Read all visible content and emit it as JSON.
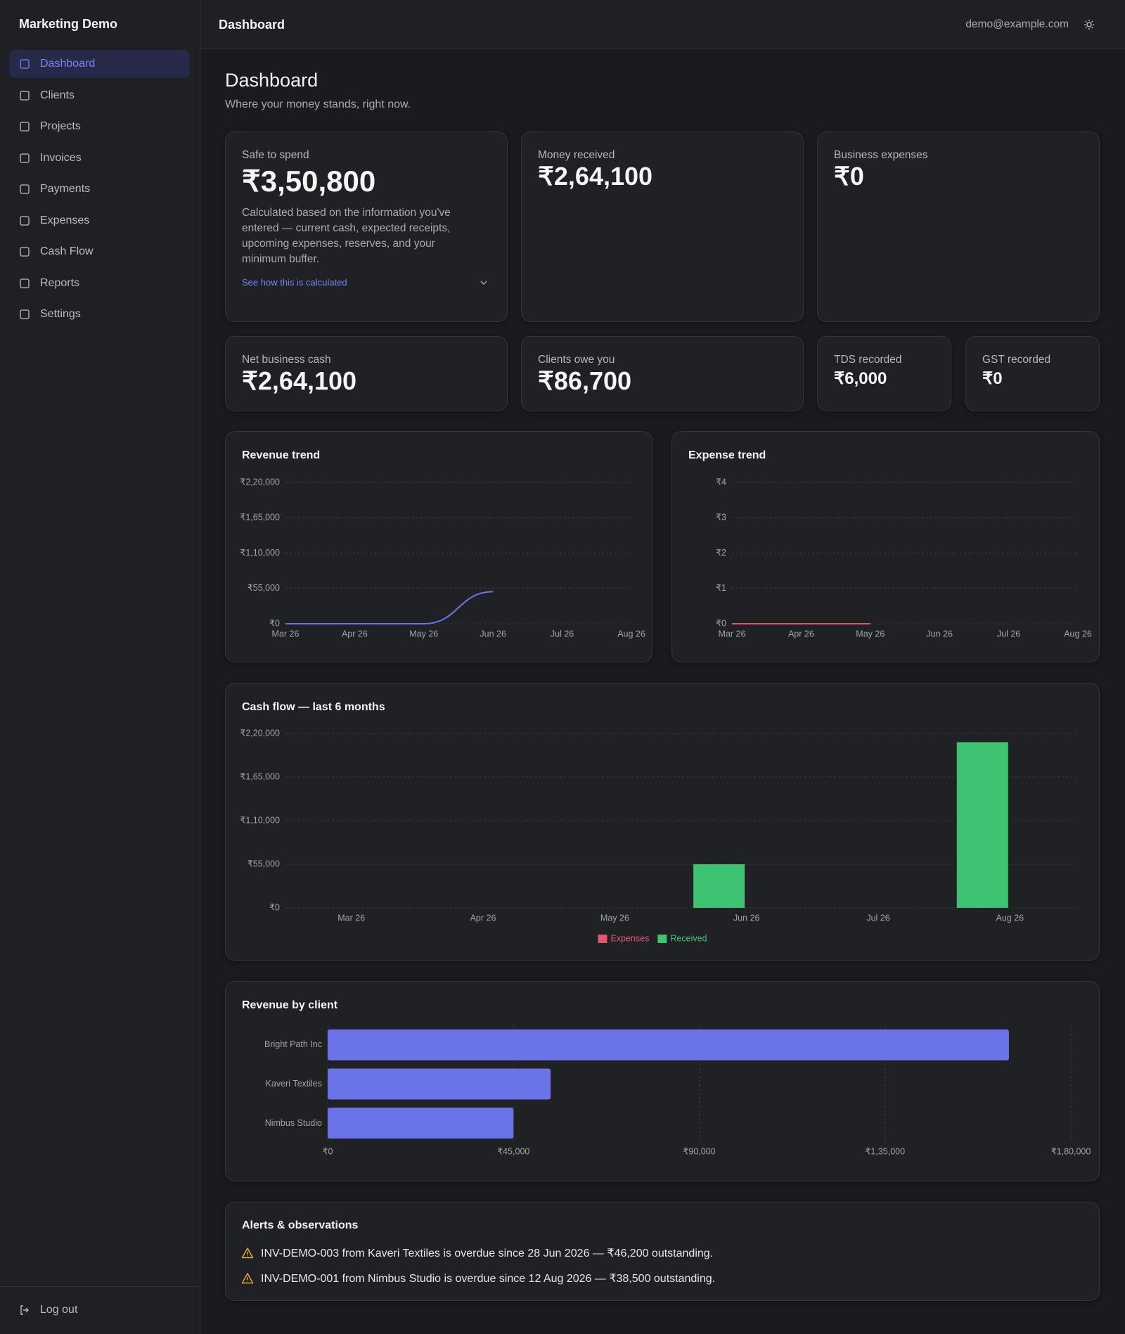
{
  "app": {
    "name": "Marketing Demo"
  },
  "nav": {
    "items": [
      "Dashboard",
      "Clients",
      "Projects",
      "Invoices",
      "Payments",
      "Expenses",
      "Cash Flow",
      "Reports",
      "Settings"
    ],
    "active": 0
  },
  "logout": "Log out",
  "header": {
    "title": "Dashboard",
    "user": "demo@example.com"
  },
  "page": {
    "title": "Dashboard",
    "subtitle": "Where your money stands, right now."
  },
  "cards": [
    {
      "label": "Safe to spend",
      "value": "₹3,50,800",
      "description": "Calculated based on the information you've entered — current cash, expected receipts, upcoming expenses, reserves, and your minimum buffer.",
      "link": "See how this is calculated"
    },
    {
      "label": "Money received",
      "value": "₹2,64,100"
    },
    {
      "label": "Business expenses",
      "value": "₹0"
    },
    {
      "label": "Net business cash",
      "value": "₹2,64,100"
    },
    {
      "label": "Clients owe you",
      "value": "₹86,700"
    },
    {
      "label": "TDS recorded",
      "value": "₹6,000"
    },
    {
      "label": "GST recorded",
      "value": "₹0"
    }
  ],
  "chart_data": [
    {
      "type": "line",
      "title": "Revenue trend",
      "categories": [
        "Mar 26",
        "Apr 26",
        "May 26",
        "Jun 26",
        "Jul 26",
        "Aug 26"
      ],
      "values": [
        0,
        0,
        0,
        50000,
        null,
        null
      ],
      "color": "#6b73e8",
      "ylim": [
        0,
        220000
      ],
      "yticks": [
        {
          "value": 0,
          "label": "₹0"
        },
        {
          "value": 55000,
          "label": "₹55,000"
        },
        {
          "value": 110000,
          "label": "₹1,10,000"
        },
        {
          "value": 165000,
          "label": "₹1,65,000"
        },
        {
          "value": 220000,
          "label": "₹2,20,000"
        }
      ],
      "grid": true
    },
    {
      "type": "line",
      "title": "Expense trend",
      "categories": [
        "Mar 26",
        "Apr 26",
        "May 26",
        "Jun 26",
        "Jul 26",
        "Aug 26"
      ],
      "values": [
        0,
        0,
        0,
        null,
        null,
        null
      ],
      "color": "#e5566e",
      "ylim": [
        0,
        4
      ],
      "yticks": [
        {
          "value": 0,
          "label": "₹0"
        },
        {
          "value": 1,
          "label": "₹1"
        },
        {
          "value": 2,
          "label": "₹2"
        },
        {
          "value": 3,
          "label": "₹3"
        },
        {
          "value": 4,
          "label": "₹4"
        }
      ],
      "grid": true
    },
    {
      "type": "bar",
      "title": "Cash flow — last 6 months",
      "categories": [
        "Mar 26",
        "Apr 26",
        "May 26",
        "Jun 26",
        "Jul 26",
        "Aug 26"
      ],
      "series": [
        {
          "name": "Expenses",
          "color": "#e5566e",
          "values": [
            0,
            0,
            0,
            0,
            0,
            0
          ]
        },
        {
          "name": "Received",
          "color": "#3ec373",
          "values": [
            0,
            0,
            0,
            55000,
            0,
            209000
          ]
        }
      ],
      "ylim": [
        0,
        220000
      ],
      "yticks": [
        {
          "value": 0,
          "label": "₹0"
        },
        {
          "value": 55000,
          "label": "₹55,000"
        },
        {
          "value": 110000,
          "label": "₹1,10,000"
        },
        {
          "value": 165000,
          "label": "₹1,65,000"
        },
        {
          "value": 220000,
          "label": "₹2,20,000"
        }
      ],
      "grid": true,
      "legend": "bottom"
    },
    {
      "type": "hbar",
      "title": "Revenue by client",
      "categories": [
        "Bright Path Inc",
        "Kaveri Textiles",
        "Nimbus Studio"
      ],
      "values": [
        165000,
        54000,
        45000
      ],
      "color": "#6b73e8",
      "xlim": [
        0,
        180000
      ],
      "xticks": [
        {
          "value": 0,
          "label": "₹0"
        },
        {
          "value": 45000,
          "label": "₹45,000"
        },
        {
          "value": 90000,
          "label": "₹90,000"
        },
        {
          "value": 135000,
          "label": "₹1,35,000"
        },
        {
          "value": 180000,
          "label": "₹1,80,000"
        }
      ],
      "grid": true
    }
  ],
  "alerts": {
    "title": "Alerts & observations",
    "items": [
      "INV-DEMO-003 from Kaveri Textiles is overdue since 28 Jun 2026 — ₹46,200 outstanding.",
      "INV-DEMO-001 from Nimbus Studio is overdue since 12 Aug 2026 — ₹38,500 outstanding."
    ]
  }
}
